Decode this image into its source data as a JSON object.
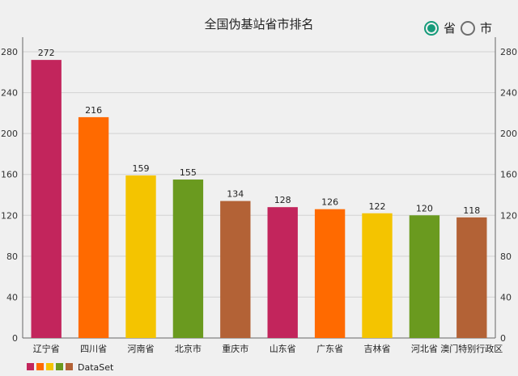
{
  "chart_data": {
    "type": "bar",
    "title": "全国伪基站省市排名",
    "categories": [
      "辽宁省",
      "四川省",
      "河南省",
      "北京市",
      "重庆市",
      "山东省",
      "广东省",
      "吉林省",
      "河北省",
      "澳门特别行政区"
    ],
    "values": [
      272,
      216,
      159,
      155,
      134,
      128,
      126,
      122,
      120,
      118
    ],
    "colors": [
      "#c2255c",
      "#ff6a00",
      "#f4c400",
      "#6a9a1f",
      "#b36236",
      "#c2255c",
      "#ff6a00",
      "#f4c400",
      "#6a9a1f",
      "#b36236"
    ],
    "ylim": [
      0,
      280
    ],
    "yticks": [
      0,
      40,
      80,
      120,
      160,
      200,
      240,
      280
    ],
    "grid": true,
    "legend": {
      "label": "DataSet",
      "colors": [
        "#c2255c",
        "#ff6a00",
        "#f4c400",
        "#6a9a1f",
        "#b36236"
      ],
      "placement": "bottom-left"
    }
  },
  "toggle": {
    "options": [
      {
        "label": "省",
        "checked": true
      },
      {
        "label": "市",
        "checked": false
      }
    ],
    "accent_color": "#169b7a"
  }
}
